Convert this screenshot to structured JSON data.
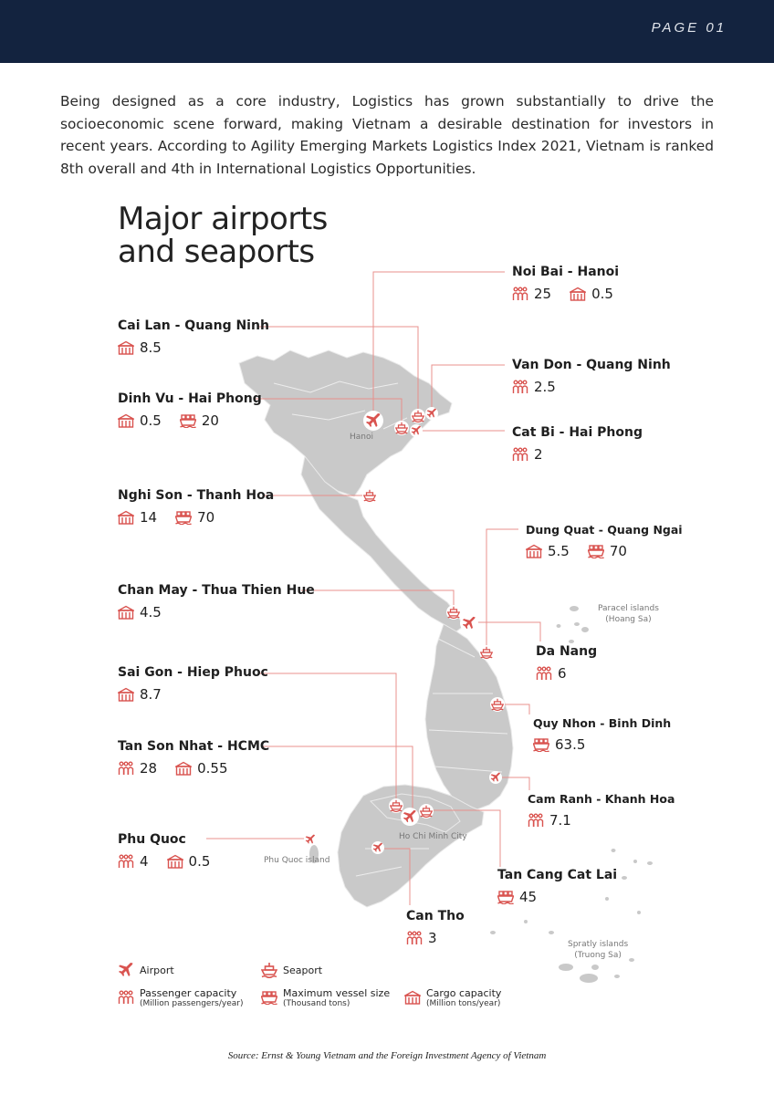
{
  "header": {
    "page": "PAGE 01"
  },
  "intro": "Being designed as a core industry, Logistics has grown substantially to drive the socioeconomic scene forward, making Vietnam a desirable destination for investors in recent years. According to Agility Emerging Markets Logistics Index 2021, Vietnam is ranked 8th overall and 4th in International Logistics Opportunities.",
  "infographic": {
    "title_line1": "Major airports",
    "title_line2": "and seaports",
    "colors": {
      "accent": "#d9534f",
      "land": "#c9c9c9",
      "header": "#13233f"
    },
    "ports": [
      {
        "name": "Noi Bai - Hanoi",
        "passenger": "25",
        "cargo": "0.5"
      },
      {
        "name": "Cai Lan - Quang Ninh",
        "cargo": "8.5"
      },
      {
        "name": "Van Don - Quang Ninh",
        "passenger": "2.5"
      },
      {
        "name": "Dinh Vu - Hai Phong",
        "cargo": "0.5",
        "vessel": "20"
      },
      {
        "name": "Cat Bi - Hai Phong",
        "passenger": "2"
      },
      {
        "name": "Nghi Son - Thanh Hoa",
        "cargo": "14",
        "vessel": "70"
      },
      {
        "name": "Dung Quat - Quang Ngai",
        "cargo": "5.5",
        "vessel": "70"
      },
      {
        "name": "Chan May - Thua Thien Hue",
        "cargo": "4.5"
      },
      {
        "name": "Da Nang",
        "passenger": "6"
      },
      {
        "name": "Sai Gon - Hiep Phuoc",
        "cargo": "8.7"
      },
      {
        "name": "Quy Nhon - Binh Dinh",
        "vessel": "63.5"
      },
      {
        "name": "Tan Son Nhat - HCMC",
        "passenger": "28",
        "cargo": "0.55"
      },
      {
        "name": "Cam Ranh - Khanh Hoa",
        "passenger": "7.1"
      },
      {
        "name": "Phu Quoc",
        "passenger": "4",
        "cargo": "0.5"
      },
      {
        "name": "Tan Cang Cat Lai",
        "vessel": "45"
      },
      {
        "name": "Can Tho",
        "passenger": "3"
      }
    ],
    "map_labels": {
      "hanoi": "Hanoi",
      "hcmc": "Ho Chi Minh City",
      "phuquoc": "Phu Quoc island",
      "paracel1": "Paracel islands",
      "paracel2": "(Hoang Sa)",
      "spratly1": "Spratly islands",
      "spratly2": "(Truong Sa)"
    },
    "legend": {
      "airport": "Airport",
      "seaport": "Seaport",
      "passenger": "Passenger capacity",
      "passenger_unit": "(Million passengers/year)",
      "vessel": "Maximum vessel size",
      "vessel_unit": "(Thousand tons)",
      "cargo": "Cargo capacity",
      "cargo_unit": "(Million tons/year)"
    }
  },
  "source": "Source: Ernst & Young Vietnam and the Foreign Investment Agency of Vietnam"
}
